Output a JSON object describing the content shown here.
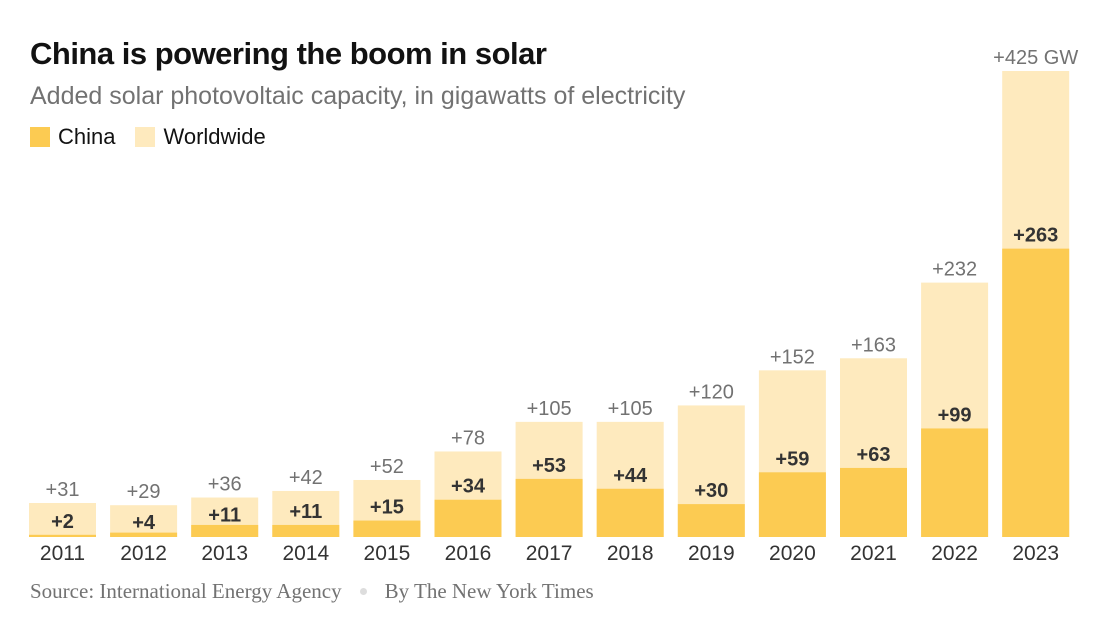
{
  "chart_data": {
    "type": "bar",
    "stacking": "overlay",
    "title": "China is powering the boom in solar",
    "subtitle": "Added solar photovoltaic capacity, in gigawatts of electricity",
    "xlabel": "",
    "ylabel": "",
    "ylim": [
      0,
      425
    ],
    "grid": false,
    "legend": {
      "placement": "top-left",
      "entries": [
        {
          "name": "China",
          "color": "#fccb52"
        },
        {
          "name": "Worldwide",
          "color": "#feeabe"
        }
      ]
    },
    "categories": [
      "2011",
      "2012",
      "2013",
      "2014",
      "2015",
      "2016",
      "2017",
      "2018",
      "2019",
      "2020",
      "2021",
      "2022",
      "2023"
    ],
    "series": [
      {
        "name": "Worldwide",
        "color": "#feeabe",
        "values": [
          31,
          29,
          36,
          42,
          52,
          78,
          105,
          105,
          120,
          152,
          163,
          232,
          425
        ]
      },
      {
        "name": "China",
        "color": "#fccb52",
        "values": [
          2,
          4,
          11,
          11,
          15,
          34,
          53,
          44,
          30,
          59,
          63,
          99,
          263
        ]
      }
    ],
    "total_labels": [
      "+31",
      "+29",
      "+36",
      "+42",
      "+52",
      "+78",
      "+105",
      "+105",
      "+120",
      "+152",
      "+163",
      "+232",
      "+425 GW"
    ],
    "china_labels": [
      "+2",
      "+4",
      "+11",
      "+11",
      "+15",
      "+34",
      "+53",
      "+44",
      "+30",
      "+59",
      "+63",
      "+99",
      "+263"
    ]
  },
  "footer": {
    "source": "Source: International Energy Agency",
    "byline": "By The New York Times"
  }
}
